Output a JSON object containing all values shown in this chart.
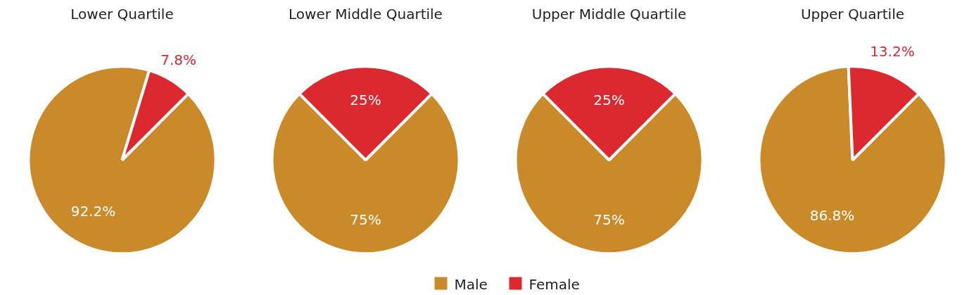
{
  "chart_data": [
    {
      "type": "pie",
      "title": "Lower Quartile",
      "categories": [
        "Male",
        "Female"
      ],
      "values": [
        92.2,
        7.8
      ],
      "colors": [
        "#cb8a29",
        "#dc282f"
      ],
      "value_labels": [
        "92.2%",
        "7.8%"
      ],
      "legend": "bottom"
    },
    {
      "type": "pie",
      "title": "Lower Middle Quartile",
      "categories": [
        null,
        null
      ],
      "values": [
        75,
        25
      ],
      "colors": [
        "#cb8a29",
        "#dc282f"
      ],
      "value_labels": [
        "75%",
        "25%"
      ]
    },
    {
      "type": "pie",
      "title": "Upper Middle Quartile",
      "categories": [
        null,
        null
      ],
      "values": [
        75,
        25
      ],
      "colors": [
        "#cb8a29",
        "#dc282f"
      ],
      "value_labels": [
        "75%",
        "25%"
      ]
    },
    {
      "type": "pie",
      "title": "Upper Quartile",
      "categories": [
        null,
        null
      ],
      "values": [
        86.8,
        13.2
      ],
      "colors": [
        "#cb8a29",
        "#dc282f"
      ],
      "value_labels": [
        "86.8%",
        "13.2%"
      ]
    }
  ]
}
